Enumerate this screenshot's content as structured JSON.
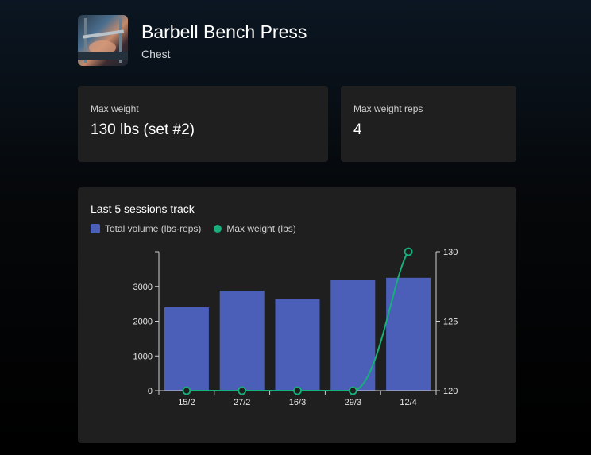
{
  "header": {
    "title": "Barbell Bench Press",
    "subtitle": "Chest",
    "thumbnail_icon": "exercise-photo"
  },
  "stats": [
    {
      "label": "Max weight",
      "value": "130 lbs (set #2)"
    },
    {
      "label": "Max weight reps",
      "value": "4"
    }
  ],
  "chart_card": {
    "title": "Last 5 sessions track",
    "legend": [
      {
        "label": "Total volume (lbs·reps)",
        "color": "#4b5fb8",
        "shape": "square"
      },
      {
        "label": "Max weight (lbs)",
        "color": "#16b07a",
        "shape": "circle"
      }
    ]
  },
  "chart_data": {
    "type": "bar",
    "categories": [
      "15/2",
      "27/2",
      "16/3",
      "29/3",
      "12/4"
    ],
    "series": [
      {
        "name": "Total volume (lbs·reps)",
        "type": "bar",
        "axis": "left",
        "color": "#4b5fb8",
        "values": [
          2400,
          2880,
          2640,
          3200,
          3250
        ]
      },
      {
        "name": "Max weight (lbs)",
        "type": "line",
        "axis": "right",
        "color": "#16b07a",
        "values": [
          120,
          120,
          120,
          120,
          130
        ]
      }
    ],
    "y_left": {
      "ticks": [
        0,
        1000,
        2000,
        3000
      ],
      "range": [
        0,
        4000
      ]
    },
    "y_right": {
      "ticks": [
        120,
        125,
        130
      ],
      "range": [
        120,
        130
      ]
    },
    "grid": false,
    "legend_position": "top-left"
  }
}
